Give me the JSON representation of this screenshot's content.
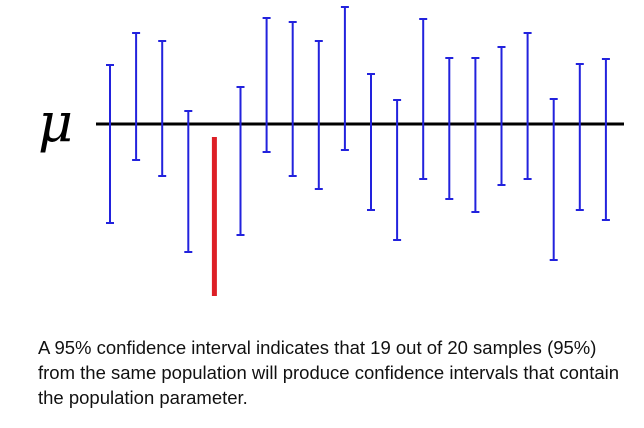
{
  "diagram": {
    "parameter_symbol": "μ",
    "colors": {
      "contains_interval": "#2222dd",
      "missing_interval": "#dd1f26",
      "parameter_line": "#000000"
    },
    "intervals": [
      {
        "lower": -99,
        "upper": 59,
        "contains": true
      },
      {
        "lower": -36,
        "upper": 91,
        "contains": true
      },
      {
        "lower": -52,
        "upper": 83,
        "contains": true
      },
      {
        "lower": -128,
        "upper": 13,
        "contains": true
      },
      {
        "lower": -172,
        "upper": -13,
        "contains": false
      },
      {
        "lower": -111,
        "upper": 37,
        "contains": true
      },
      {
        "lower": -28,
        "upper": 106,
        "contains": true
      },
      {
        "lower": -52,
        "upper": 102,
        "contains": true
      },
      {
        "lower": -65,
        "upper": 83,
        "contains": true
      },
      {
        "lower": -26,
        "upper": 117,
        "contains": true
      },
      {
        "lower": -86,
        "upper": 50,
        "contains": true
      },
      {
        "lower": -116,
        "upper": 24,
        "contains": true
      },
      {
        "lower": -55,
        "upper": 105,
        "contains": true
      },
      {
        "lower": -75,
        "upper": 66,
        "contains": true
      },
      {
        "lower": -88,
        "upper": 66,
        "contains": true
      },
      {
        "lower": -61,
        "upper": 77,
        "contains": true
      },
      {
        "lower": -55,
        "upper": 91,
        "contains": true
      },
      {
        "lower": -136,
        "upper": 25,
        "contains": true
      },
      {
        "lower": -86,
        "upper": 60,
        "contains": true
      },
      {
        "lower": -96,
        "upper": 65,
        "contains": true
      }
    ]
  },
  "caption": {
    "text": "A 95% confidence interval indicates that 19 out of 20 samples (95%) from the same population will produce confidence intervals that contain the population parameter."
  }
}
